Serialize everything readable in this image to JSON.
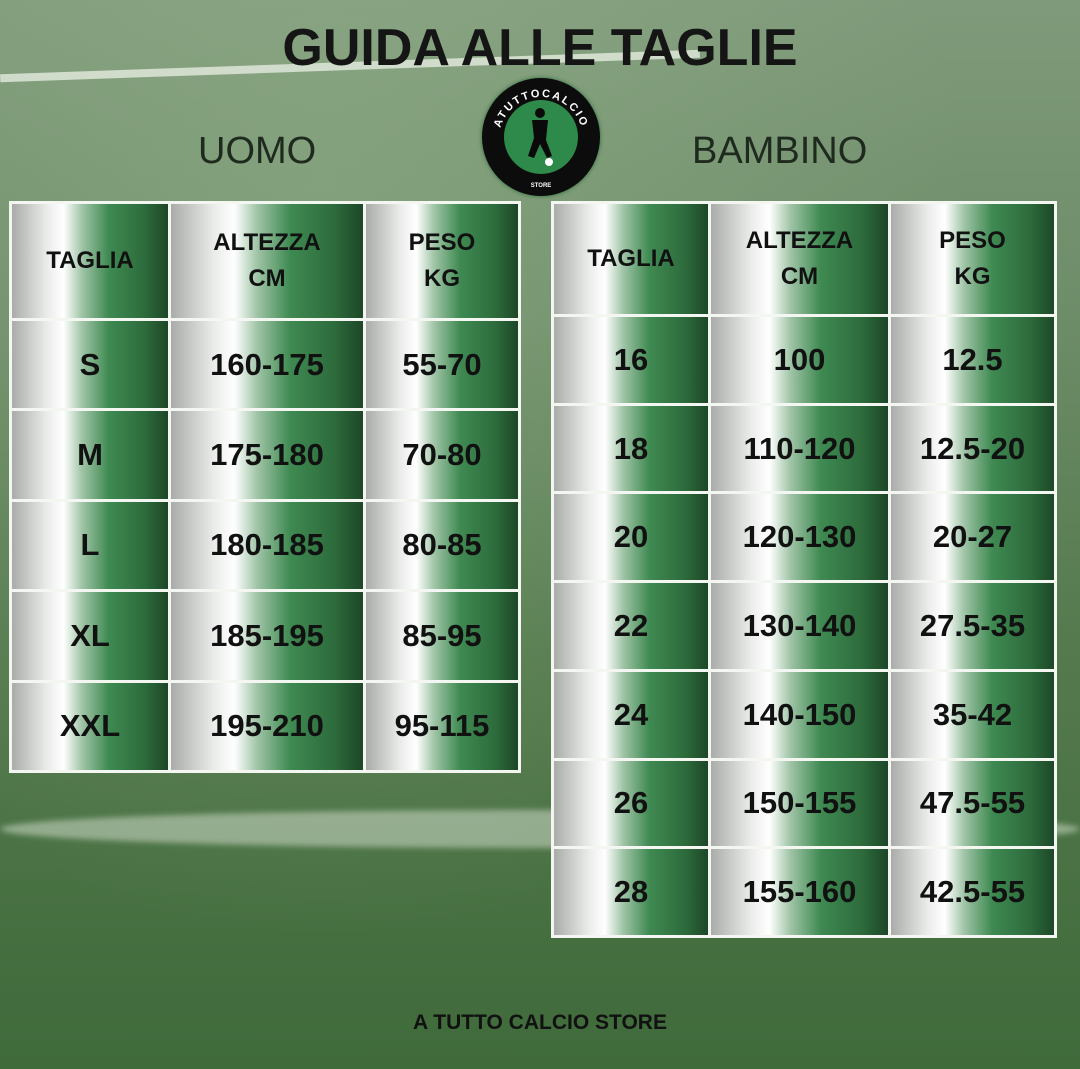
{
  "title": "GUIDA ALLE TAGLIE",
  "logo": {
    "ring_text": "ATUTTOCALCIO",
    "sub_text": "STORE"
  },
  "uomo": {
    "label": "UOMO",
    "headers": [
      "TAGLIA",
      "ALTEZZA CM",
      "PESO KG"
    ],
    "rows": [
      [
        "S",
        "160-175",
        "55-70"
      ],
      [
        "M",
        "175-180",
        "70-80"
      ],
      [
        "L",
        "180-185",
        "80-85"
      ],
      [
        "XL",
        "185-195",
        "85-95"
      ],
      [
        "XXL",
        "195-210",
        "95-115"
      ]
    ]
  },
  "bambino": {
    "label": "BAMBINO",
    "headers": [
      "TAGLIA",
      "ALTEZZA CM",
      "PESO KG"
    ],
    "rows": [
      [
        "16",
        "100",
        "12.5"
      ],
      [
        "18",
        "110-120",
        "12.5-20"
      ],
      [
        "20",
        "120-130",
        "20-27"
      ],
      [
        "22",
        "130-140",
        "27.5-35"
      ],
      [
        "24",
        "140-150",
        "35-42"
      ],
      [
        "26",
        "150-155",
        "47.5-55"
      ],
      [
        "28",
        "155-160",
        "42.5-55"
      ]
    ]
  },
  "footer": "A TUTTO CALCIO STORE",
  "colors": {
    "green_dark": "#1d4727",
    "green": "#3f8a52",
    "border": "#f4f6f2"
  }
}
